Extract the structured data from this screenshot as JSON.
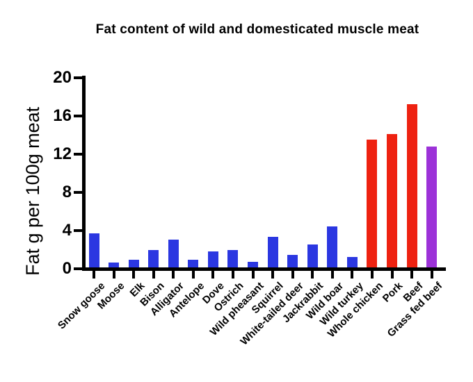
{
  "chart_data": {
    "type": "bar",
    "title": "Fat content of wild and domesticated muscle meat",
    "ylabel": "Fat g per 100g meat",
    "xlabel": "",
    "ylim": [
      0,
      20
    ],
    "yticks": [
      0,
      4,
      8,
      12,
      16,
      20
    ],
    "grid": false,
    "legend_position": "none",
    "categories": [
      "Snow goose",
      "Moose",
      "Elk",
      "Bison",
      "Alligator",
      "Antelope",
      "Dove",
      "Ostrich",
      "Wild pheasant",
      "Squirrel",
      "White-tailed deer",
      "Jackrabbit",
      "Wild boar",
      "Wild turkey",
      "Whole chicken",
      "Pork",
      "Beef",
      "Grass fed beef"
    ],
    "values": [
      3.6,
      0.5,
      0.8,
      1.8,
      2.9,
      0.8,
      1.7,
      1.8,
      0.6,
      3.2,
      1.3,
      2.4,
      4.3,
      1.1,
      13.4,
      14.0,
      17.1,
      12.7
    ],
    "colors": [
      "#2b37e1",
      "#2b37e1",
      "#2b37e1",
      "#2b37e1",
      "#2b37e1",
      "#2b37e1",
      "#2b37e1",
      "#2b37e1",
      "#2b37e1",
      "#2b37e1",
      "#2b37e1",
      "#2b37e1",
      "#2b37e1",
      "#2b37e1",
      "#ee2211",
      "#ee2211",
      "#ee2211",
      "#9c32d8"
    ],
    "palette": {
      "wild_blue": "#2b37e1",
      "domesticated_red": "#ee2211",
      "grass_fed_purple": "#9c32d8"
    },
    "axis_color": "#000000",
    "background_color": "#ffffff"
  }
}
